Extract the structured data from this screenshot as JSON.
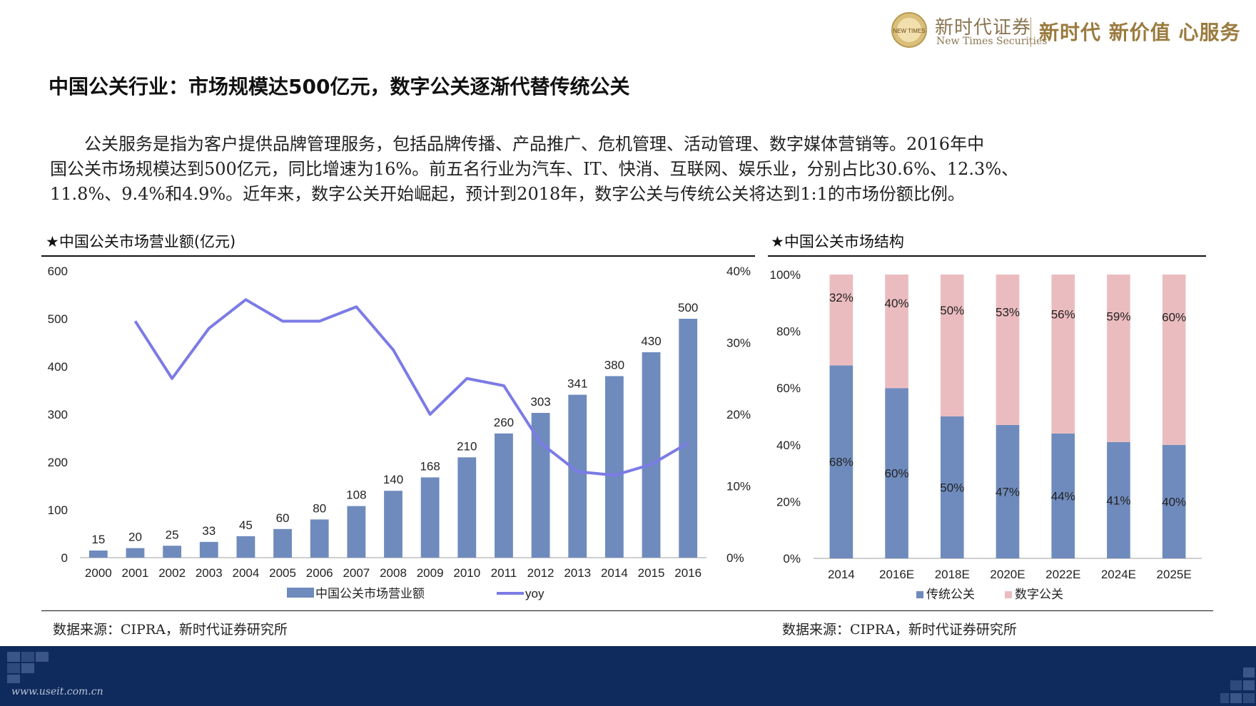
{
  "header": {
    "logo_mark_text": "NEW TIMES",
    "logo_cn": "新时代证券",
    "logo_en": "New Times Securities",
    "slogan": "新时代 新价值 心服务"
  },
  "page_title": "中国公关行业：市场规模达500亿元，数字公关逐渐代替传统公关",
  "body_lines": [
    "　　公关服务是指为客户提供品牌管理服务，包括品牌传播、产品推广、危机管理、活动管理、数字媒体营销等。2016年中",
    "国公关市场规模达到500亿元，同比增速为16%。前五名行业为汽车、IT、快消、互联网、娱乐业，分别占比30.6%、12.3%、",
    "11.8%、9.4%和4.9%。近年来，数字公关开始崛起，预计到2018年，数字公关与传统公关将达到1:1的市场份额比例。"
  ],
  "left_panel": {
    "title": "★中国公关市场营业额(亿元)",
    "source": "数据来源：CIPRA，新时代证券研究所"
  },
  "right_panel": {
    "title": "★中国公关市场结构",
    "source": "数据来源：CIPRA，新时代证券研究所"
  },
  "footer": {
    "url": "www.useit.com.cn"
  },
  "colors": {
    "bar": "#6f8bbd",
    "line": "#7b7be6",
    "traditional": "#6f8bbd",
    "digital": "#ebbcbf",
    "footer": "#0f2a5c",
    "brand": "#9a7b3e"
  },
  "chart_data": [
    {
      "type": "bar",
      "categories": [
        "2000",
        "2001",
        "2002",
        "2003",
        "2004",
        "2005",
        "2006",
        "2007",
        "2008",
        "2009",
        "2010",
        "2011",
        "2012",
        "2013",
        "2014",
        "2015",
        "2016"
      ],
      "series": [
        {
          "name": "中国公关市场营业额",
          "type": "bar",
          "axis": "left",
          "values": [
            15,
            20,
            25,
            33,
            45,
            60,
            80,
            108,
            140,
            168,
            210,
            260,
            303,
            341,
            380,
            430,
            500
          ]
        },
        {
          "name": "yoy",
          "type": "line",
          "axis": "right",
          "values": [
            null,
            33,
            25,
            32,
            36,
            33,
            33,
            35,
            29,
            20,
            25,
            24,
            16,
            12,
            11.5,
            13,
            16
          ]
        }
      ],
      "ylim": [
        0,
        600
      ],
      "yticks": [
        "0",
        "100",
        "200",
        "300",
        "400",
        "500",
        "600"
      ],
      "y2lim": [
        0,
        40
      ],
      "y2ticks": [
        "0%",
        "10%",
        "20%",
        "30%",
        "40%"
      ],
      "legend_position": "bottom"
    },
    {
      "type": "bar",
      "stacked": true,
      "categories": [
        "2014",
        "2016E",
        "2018E",
        "2020E",
        "2022E",
        "2024E",
        "2025E"
      ],
      "series": [
        {
          "name": "传统公关",
          "values": [
            68,
            60,
            50,
            47,
            44,
            41,
            40
          ],
          "labels": [
            "68%",
            "60%",
            "50%",
            "47%",
            "44%",
            "41%",
            "40%"
          ]
        },
        {
          "name": "数字公关",
          "values": [
            32,
            40,
            50,
            53,
            56,
            59,
            60
          ],
          "labels": [
            "32%",
            "40%",
            "50%",
            "53%",
            "56%",
            "59%",
            "60%"
          ]
        }
      ],
      "ylim": [
        0,
        100
      ],
      "yticks": [
        "0%",
        "20%",
        "40%",
        "60%",
        "80%",
        "100%"
      ],
      "legend_position": "bottom"
    }
  ]
}
